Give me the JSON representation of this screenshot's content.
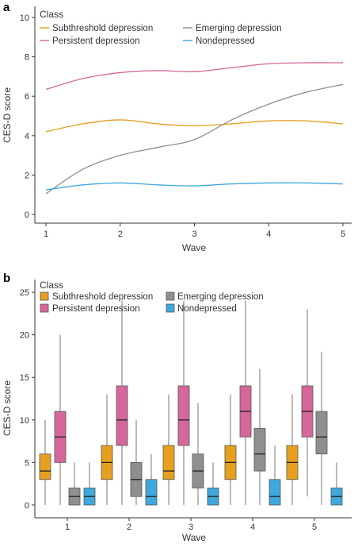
{
  "colors": {
    "subthreshold": "#E69F1F",
    "persistent": "#D6679A",
    "emerging": "#8F8F8F",
    "nondepressed": "#3FA8DC",
    "axis": "#333333"
  },
  "chart_data": [
    {
      "panel": "a",
      "type": "line",
      "xlabel": "Wave",
      "ylabel": "CES-D score",
      "xlim": [
        1,
        5
      ],
      "ylim": [
        0,
        10
      ],
      "x_ticks": [
        "1",
        "2",
        "3",
        "4",
        "5"
      ],
      "y_ticks": [
        "0",
        "2",
        "4",
        "6",
        "8",
        "10"
      ],
      "legend": {
        "title": "Class",
        "placement": "top-left",
        "entries": [
          "Subthreshold depression",
          "Emerging depression",
          "Persistent depression",
          "Nondepressed"
        ]
      },
      "x": [
        1,
        1.5,
        2,
        2.5,
        3,
        3.5,
        4,
        4.5,
        5
      ],
      "series": [
        {
          "name": "Subthreshold depression",
          "color_key": "subthreshold",
          "values": [
            4.2,
            4.6,
            4.8,
            4.6,
            4.5,
            4.6,
            4.75,
            4.75,
            4.6
          ]
        },
        {
          "name": "Persistent depression",
          "color_key": "persistent",
          "values": [
            6.35,
            6.9,
            7.2,
            7.3,
            7.25,
            7.45,
            7.65,
            7.7,
            7.7
          ]
        },
        {
          "name": "Emerging depression",
          "color_key": "emerging",
          "values": [
            1.05,
            2.3,
            3.0,
            3.4,
            3.8,
            4.8,
            5.6,
            6.2,
            6.6
          ]
        },
        {
          "name": "Nondepressed",
          "color_key": "nondepressed",
          "values": [
            1.25,
            1.5,
            1.6,
            1.5,
            1.45,
            1.55,
            1.6,
            1.6,
            1.55
          ]
        }
      ]
    },
    {
      "panel": "b",
      "type": "box",
      "xlabel": "Wave",
      "ylabel": "CES-D score",
      "ylim": [
        -1.5,
        26.5
      ],
      "categories": [
        "1",
        "2",
        "3",
        "4",
        "5"
      ],
      "y_ticks": [
        "0",
        "5",
        "10",
        "15",
        "20",
        "25"
      ],
      "legend": {
        "title": "Class",
        "placement": "top-left",
        "entries": [
          "Subthreshold depression",
          "Emerging depression",
          "Persistent depression",
          "Nondepressed"
        ]
      },
      "series": [
        {
          "name": "Subthreshold depression",
          "color_key": "subthreshold",
          "boxes": [
            {
              "min": 0,
              "q1": 3,
              "median": 4,
              "q3": 6,
              "max": 10
            },
            {
              "min": 0,
              "q1": 3,
              "median": 5,
              "q3": 7,
              "max": 13
            },
            {
              "min": 0,
              "q1": 3,
              "median": 4,
              "q3": 7,
              "max": 13
            },
            {
              "min": 0,
              "q1": 3,
              "median": 5,
              "q3": 7,
              "max": 13
            },
            {
              "min": 0,
              "q1": 3,
              "median": 5,
              "q3": 7,
              "max": 13
            }
          ]
        },
        {
          "name": "Persistent depression",
          "color_key": "persistent",
          "boxes": [
            {
              "min": 0,
              "q1": 5,
              "median": 8,
              "q3": 11,
              "max": 20
            },
            {
              "min": 0,
              "q1": 7,
              "median": 10,
              "q3": 14,
              "max": 24
            },
            {
              "min": 0,
              "q1": 7,
              "median": 10,
              "q3": 14,
              "max": 24
            },
            {
              "min": 0,
              "q1": 8,
              "median": 11,
              "q3": 14,
              "max": 24
            },
            {
              "min": 1,
              "q1": 8,
              "median": 11,
              "q3": 14,
              "max": 23
            }
          ]
        },
        {
          "name": "Emerging depression",
          "color_key": "emerging",
          "boxes": [
            {
              "min": 0,
              "q1": 0,
              "median": 1,
              "q3": 2,
              "max": 5
            },
            {
              "min": 0,
              "q1": 1,
              "median": 3,
              "q3": 5,
              "max": 10
            },
            {
              "min": 0,
              "q1": 2,
              "median": 4,
              "q3": 6,
              "max": 12
            },
            {
              "min": 0,
              "q1": 4,
              "median": 6,
              "q3": 9,
              "max": 16
            },
            {
              "min": 0,
              "q1": 6,
              "median": 8,
              "q3": 11,
              "max": 18
            }
          ]
        },
        {
          "name": "Nondepressed",
          "color_key": "nondepressed",
          "boxes": [
            {
              "min": 0,
              "q1": 0,
              "median": 1,
              "q3": 2,
              "max": 5
            },
            {
              "min": 0,
              "q1": 0,
              "median": 1,
              "q3": 3,
              "max": 6
            },
            {
              "min": 0,
              "q1": 0,
              "median": 1,
              "q3": 2,
              "max": 5
            },
            {
              "min": 0,
              "q1": 0,
              "median": 1,
              "q3": 3,
              "max": 7
            },
            {
              "min": 0,
              "q1": 0,
              "median": 1,
              "q3": 2,
              "max": 5
            }
          ]
        }
      ]
    }
  ]
}
